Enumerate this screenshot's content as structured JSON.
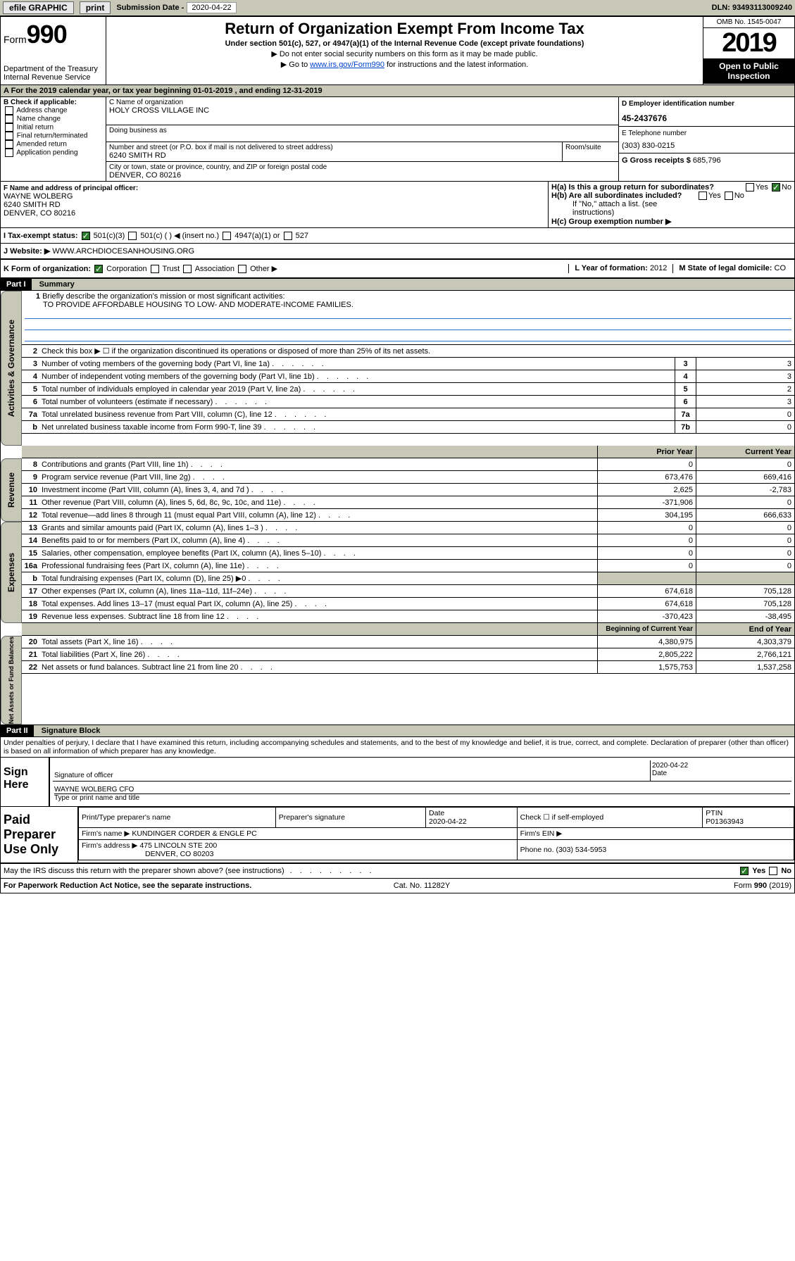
{
  "topbar": {
    "efile": "efile GRAPHIC",
    "print": "print",
    "sub_label": "Submission Date - ",
    "sub_date": "2020-04-22",
    "dln": "DLN: 93493113009240"
  },
  "header": {
    "form_prefix": "Form",
    "form_num": "990",
    "dept": "Department of the Treasury\nInternal Revenue Service",
    "title": "Return of Organization Exempt From Income Tax",
    "sub": "Under section 501(c), 527, or 4947(a)(1) of the Internal Revenue Code (except private foundations)",
    "note1": "▶ Do not enter social security numbers on this form as it may be made public.",
    "note2_pre": "▶ Go to ",
    "note2_link": "www.irs.gov/Form990",
    "note2_post": " for instructions and the latest information.",
    "omb": "OMB No. 1545-0047",
    "year": "2019",
    "open": "Open to Public Inspection"
  },
  "taxyear": "For the 2019 calendar year, or tax year beginning 01-01-2019    , and ending 12-31-2019",
  "sectionB": {
    "hdr": "B Check if applicable:",
    "items": [
      "Address change",
      "Name change",
      "Initial return",
      "Final return/terminated",
      "Amended return",
      "Application pending"
    ]
  },
  "sectionC": {
    "name_label": "C Name of organization",
    "name": "HOLY CROSS VILLAGE INC",
    "dba_label": "Doing business as",
    "addr_label": "Number and street (or P.O. box if mail is not delivered to street address)",
    "addr": "6240 SMITH RD",
    "room_label": "Room/suite",
    "city_label": "City or town, state or province, country, and ZIP or foreign postal code",
    "city": "DENVER, CO  80216"
  },
  "sectionD": {
    "ein_label": "D Employer identification number",
    "ein": "45-2437676",
    "phone_label": "E Telephone number",
    "phone": "(303) 830-0215",
    "gross_label": "G Gross receipts $ ",
    "gross": "685,796"
  },
  "sectionF": {
    "label": "F  Name and address of principal officer:",
    "name": "WAYNE WOLBERG",
    "addr1": "6240 SMITH RD",
    "addr2": "DENVER, CO   80216"
  },
  "sectionH": {
    "ha": "H(a)  Is this a group return for subordinates?",
    "hb": "H(b)  Are all subordinates included?",
    "hb_note": "If \"No,\" attach a list. (see instructions)",
    "hc": "H(c)  Group exemption number ▶",
    "yes": "Yes",
    "no": "No"
  },
  "taxstatus_label": "I    Tax-exempt status:",
  "taxstatus_opts": [
    "501(c)(3)",
    "501(c) (  ) ◀ (insert no.)",
    "4947(a)(1) or",
    "527"
  ],
  "website_label": "J   Website: ▶",
  "website": "WWW.ARCHDIOCESANHOUSING.ORG",
  "formorg": {
    "k": "K Form of organization:",
    "opts": [
      "Corporation",
      "Trust",
      "Association",
      "Other ▶"
    ],
    "l_label": "L Year of formation: ",
    "l_val": "2012",
    "m_label": "M State of legal domicile: ",
    "m_val": "CO"
  },
  "part1": "Part I",
  "part1_title": "Summary",
  "summary": {
    "line1_label": "Briefly describe the organization's mission or most significant activities:",
    "line1_text": "TO PROVIDE AFFORDABLE HOUSING TO LOW- AND MODERATE-INCOME FAMILIES.",
    "line2": "Check this box ▶ ☐  if the organization discontinued its operations or disposed of more than 25% of its net assets.",
    "lines_ag": [
      {
        "n": "3",
        "t": "Number of voting members of the governing body (Part VI, line 1a)",
        "b": "3",
        "v": "3"
      },
      {
        "n": "4",
        "t": "Number of independent voting members of the governing body (Part VI, line 1b)",
        "b": "4",
        "v": "3"
      },
      {
        "n": "5",
        "t": "Total number of individuals employed in calendar year 2019 (Part V, line 2a)",
        "b": "5",
        "v": "2"
      },
      {
        "n": "6",
        "t": "Total number of volunteers (estimate if necessary)",
        "b": "6",
        "v": "3"
      },
      {
        "n": "7a",
        "t": "Total unrelated business revenue from Part VIII, column (C), line 12",
        "b": "7a",
        "v": "0"
      },
      {
        "n": "b",
        "t": "Net unrelated business taxable income from Form 990-T, line 39",
        "b": "7b",
        "v": "0"
      }
    ],
    "prior_hdr": "Prior Year",
    "curr_hdr": "Current Year",
    "lines_rev": [
      {
        "n": "8",
        "t": "Contributions and grants (Part VIII, line 1h)",
        "p": "0",
        "c": "0"
      },
      {
        "n": "9",
        "t": "Program service revenue (Part VIII, line 2g)",
        "p": "673,476",
        "c": "669,416"
      },
      {
        "n": "10",
        "t": "Investment income (Part VIII, column (A), lines 3, 4, and 7d )",
        "p": "2,625",
        "c": "-2,783"
      },
      {
        "n": "11",
        "t": "Other revenue (Part VIII, column (A), lines 5, 6d, 8c, 9c, 10c, and 11e)",
        "p": "-371,906",
        "c": "0"
      },
      {
        "n": "12",
        "t": "Total revenue—add lines 8 through 11 (must equal Part VIII, column (A), line 12)",
        "p": "304,195",
        "c": "666,633"
      }
    ],
    "lines_exp": [
      {
        "n": "13",
        "t": "Grants and similar amounts paid (Part IX, column (A), lines 1–3 )",
        "p": "0",
        "c": "0"
      },
      {
        "n": "14",
        "t": "Benefits paid to or for members (Part IX, column (A), line 4)",
        "p": "0",
        "c": "0"
      },
      {
        "n": "15",
        "t": "Salaries, other compensation, employee benefits (Part IX, column (A), lines 5–10)",
        "p": "0",
        "c": "0"
      },
      {
        "n": "16a",
        "t": "Professional fundraising fees (Part IX, column (A), line 11e)",
        "p": "0",
        "c": "0"
      },
      {
        "n": "b",
        "t": "Total fundraising expenses (Part IX, column (D), line 25) ▶0",
        "p": "",
        "c": "",
        "grey": true
      },
      {
        "n": "17",
        "t": "Other expenses (Part IX, column (A), lines 11a–11d, 11f–24e)",
        "p": "674,618",
        "c": "705,128"
      },
      {
        "n": "18",
        "t": "Total expenses. Add lines 13–17 (must equal Part IX, column (A), line 25)",
        "p": "674,618",
        "c": "705,128"
      },
      {
        "n": "19",
        "t": "Revenue less expenses. Subtract line 18 from line 12",
        "p": "-370,423",
        "c": "-38,495"
      }
    ],
    "begin_hdr": "Beginning of Current Year",
    "end_hdr": "End of Year",
    "lines_na": [
      {
        "n": "20",
        "t": "Total assets (Part X, line 16)",
        "p": "4,380,975",
        "c": "4,303,379"
      },
      {
        "n": "21",
        "t": "Total liabilities (Part X, line 26)",
        "p": "2,805,222",
        "c": "2,766,121"
      },
      {
        "n": "22",
        "t": "Net assets or fund balances. Subtract line 21 from line 20",
        "p": "1,575,753",
        "c": "1,537,258"
      }
    ]
  },
  "part2": "Part II",
  "part2_title": "Signature Block",
  "penalty": "Under penalties of perjury, I declare that I have examined this return, including accompanying schedules and statements, and to the best of my knowledge and belief, it is true, correct, and complete. Declaration of preparer (other than officer) is based on all information of which preparer has any knowledge.",
  "sign": {
    "label": "Sign Here",
    "sig_of_officer": "Signature of officer",
    "date": "2020-04-22",
    "date_label": "Date",
    "name": "WAYNE WOLBERG CFO",
    "name_label": "Type or print name and title"
  },
  "paid": {
    "label": "Paid Preparer Use Only",
    "col1": "Print/Type preparer's name",
    "col2": "Preparer's signature",
    "col3": "Date",
    "date": "2020-04-22",
    "col4": "Check ☐ if self-employed",
    "col5": "PTIN",
    "ptin": "P01363943",
    "firm_name_label": "Firm's name      ▶",
    "firm_name": "KUNDINGER CORDER & ENGLE PC",
    "firm_ein_label": "Firm's EIN ▶",
    "firm_addr_label": "Firm's address ▶",
    "firm_addr": "475 LINCOLN STE 200",
    "firm_city": "DENVER, CO  80203",
    "phone_label": "Phone no. ",
    "phone": "(303) 534-5953"
  },
  "discuss": "May the IRS discuss this return with the preparer shown above? (see instructions)",
  "footer": {
    "paperwork": "For Paperwork Reduction Act Notice, see the separate instructions.",
    "cat": "Cat. No. 11282Y",
    "form": "Form 990 (2019)"
  }
}
